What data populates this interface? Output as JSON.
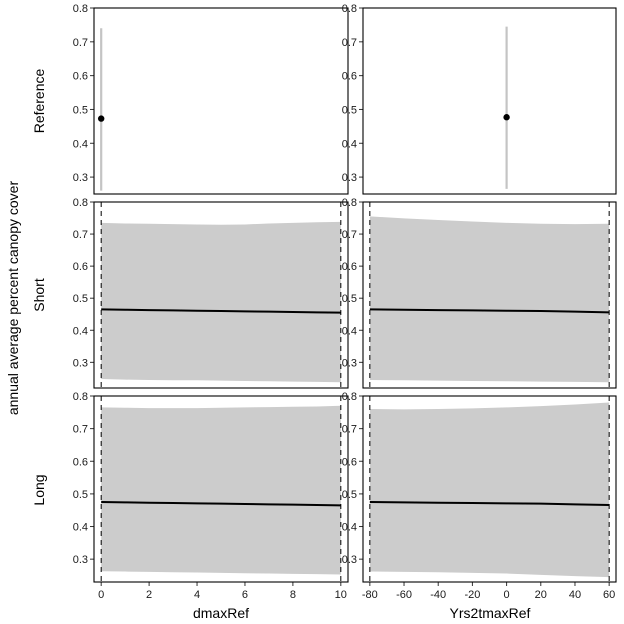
{
  "figure": {
    "y_axis_title": "annual average percent canopy cover",
    "row_labels": [
      "Reference",
      "Short",
      "Long"
    ],
    "col_x_titles": [
      "dmaxRef",
      "Yrs2tmaxRef"
    ]
  },
  "chart_data": [
    {
      "type": "line",
      "panel": "Reference / dmaxRef",
      "row": "Reference",
      "xlabel": "dmaxRef",
      "ylabel": "annual average percent canopy cover",
      "ylim": [
        0.25,
        0.8
      ],
      "xlim": [
        -0.3,
        10.3
      ],
      "yticks": [
        0.3,
        0.4,
        0.5,
        0.6,
        0.7,
        0.8
      ],
      "series": [
        {
          "x": [
            0
          ],
          "y": [
            0.473
          ],
          "ymin": [
            0.26
          ],
          "ymax": [
            0.74
          ],
          "style": "point-range"
        }
      ]
    },
    {
      "type": "line",
      "panel": "Reference / Yrs2tmaxRef",
      "row": "Reference",
      "xlabel": "Yrs2tmaxRef",
      "ylabel": "annual average percent canopy cover",
      "ylim": [
        0.25,
        0.8
      ],
      "xlim": [
        -84,
        64
      ],
      "yticks": [
        0.3,
        0.4,
        0.5,
        0.6,
        0.7,
        0.8
      ],
      "series": [
        {
          "x": [
            0
          ],
          "y": [
            0.477
          ],
          "ymin": [
            0.265
          ],
          "ymax": [
            0.745
          ],
          "style": "point-range"
        }
      ]
    },
    {
      "type": "line",
      "panel": "Short / dmaxRef",
      "row": "Short",
      "xlabel": "dmaxRef",
      "ylabel": "annual average percent canopy cover",
      "ylim": [
        0.22,
        0.8
      ],
      "xlim": [
        -0.3,
        10.3
      ],
      "yticks": [
        0.3,
        0.4,
        0.5,
        0.6,
        0.7,
        0.8
      ],
      "vlines": [
        0,
        10
      ],
      "series": [
        {
          "x": [
            0,
            1,
            2,
            3,
            4,
            5,
            6,
            7,
            8,
            9,
            10
          ],
          "y": [
            0.465,
            0.464,
            0.463,
            0.462,
            0.461,
            0.46,
            0.459,
            0.458,
            0.457,
            0.456,
            0.455
          ],
          "ymin": [
            0.248,
            0.246,
            0.245,
            0.244,
            0.244,
            0.243,
            0.242,
            0.241,
            0.24,
            0.239,
            0.238
          ],
          "ymax": [
            0.735,
            0.733,
            0.732,
            0.731,
            0.73,
            0.729,
            0.73,
            0.733,
            0.735,
            0.737,
            0.738
          ],
          "style": "line-ribbon"
        }
      ]
    },
    {
      "type": "line",
      "panel": "Short / Yrs2tmaxRef",
      "row": "Short",
      "xlabel": "Yrs2tmaxRef",
      "ylabel": "annual average percent canopy cover",
      "ylim": [
        0.22,
        0.8
      ],
      "xlim": [
        -84,
        64
      ],
      "yticks": [
        0.3,
        0.4,
        0.5,
        0.6,
        0.7,
        0.8
      ],
      "vlines": [
        -80,
        60
      ],
      "series": [
        {
          "x": [
            -80,
            -60,
            -40,
            -20,
            0,
            20,
            40,
            60
          ],
          "y": [
            0.465,
            0.464,
            0.463,
            0.462,
            0.461,
            0.46,
            0.458,
            0.456
          ],
          "ymin": [
            0.245,
            0.244,
            0.243,
            0.242,
            0.241,
            0.24,
            0.239,
            0.238
          ],
          "ymax": [
            0.755,
            0.749,
            0.744,
            0.739,
            0.735,
            0.732,
            0.731,
            0.732
          ],
          "style": "line-ribbon"
        }
      ]
    },
    {
      "type": "line",
      "panel": "Long / dmaxRef",
      "row": "Long",
      "xlabel": "dmaxRef",
      "ylabel": "annual average percent canopy cover",
      "ylim": [
        0.23,
        0.8
      ],
      "xlim": [
        -0.3,
        10.3
      ],
      "yticks": [
        0.3,
        0.4,
        0.5,
        0.6,
        0.7,
        0.8
      ],
      "xticks": [
        0,
        2,
        4,
        6,
        8,
        10
      ],
      "vlines": [
        0,
        10
      ],
      "series": [
        {
          "x": [
            0,
            1,
            2,
            3,
            4,
            5,
            6,
            7,
            8,
            9,
            10
          ],
          "y": [
            0.475,
            0.474,
            0.473,
            0.472,
            0.471,
            0.47,
            0.469,
            0.468,
            0.467,
            0.466,
            0.465
          ],
          "ymin": [
            0.263,
            0.262,
            0.261,
            0.26,
            0.259,
            0.258,
            0.257,
            0.256,
            0.255,
            0.254,
            0.253
          ],
          "ymax": [
            0.765,
            0.764,
            0.763,
            0.763,
            0.763,
            0.764,
            0.765,
            0.766,
            0.767,
            0.768,
            0.77
          ],
          "style": "line-ribbon"
        }
      ]
    },
    {
      "type": "line",
      "panel": "Long / Yrs2tmaxRef",
      "row": "Long",
      "xlabel": "Yrs2tmaxRef",
      "ylabel": "annual average percent canopy cover",
      "ylim": [
        0.23,
        0.8
      ],
      "xlim": [
        -84,
        64
      ],
      "yticks": [
        0.3,
        0.4,
        0.5,
        0.6,
        0.7,
        0.8
      ],
      "xticks": [
        -80,
        -60,
        -40,
        -20,
        0,
        20,
        40,
        60
      ],
      "vlines": [
        -80,
        60
      ],
      "series": [
        {
          "x": [
            -80,
            -60,
            -40,
            -20,
            0,
            20,
            40,
            60
          ],
          "y": [
            0.475,
            0.474,
            0.473,
            0.472,
            0.471,
            0.47,
            0.468,
            0.466
          ],
          "ymin": [
            0.262,
            0.261,
            0.26,
            0.258,
            0.256,
            0.252,
            0.248,
            0.245
          ],
          "ymax": [
            0.76,
            0.759,
            0.76,
            0.762,
            0.765,
            0.769,
            0.774,
            0.78
          ],
          "style": "line-ribbon"
        }
      ]
    }
  ]
}
